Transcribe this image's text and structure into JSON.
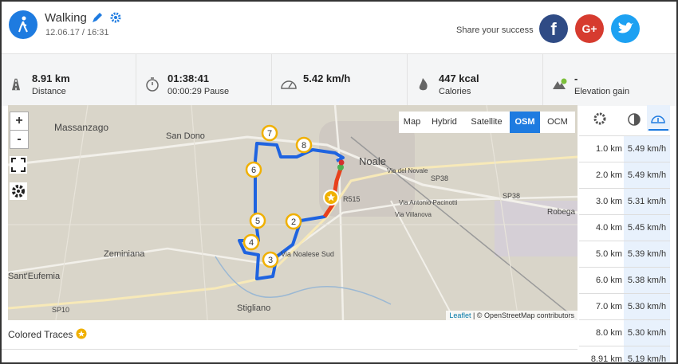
{
  "header": {
    "title": "Walking",
    "date": "12.06.17 / 16:31",
    "share": "Share your success",
    "social": [
      "f",
      "G+"
    ]
  },
  "stats": [
    {
      "value": "8.91 km",
      "label": "Distance"
    },
    {
      "value": "01:38:41",
      "label": "00:00:29 Pause"
    },
    {
      "value": "5.42 km/h"
    },
    {
      "value": "447 kcal",
      "label": "Calories"
    },
    {
      "value": "-",
      "label": "Elevation gain"
    }
  ],
  "map": {
    "layers": [
      "Map",
      "Hybrid",
      "Satellite",
      "OSM",
      "OCM"
    ],
    "active_layer": "OSM",
    "zoom": [
      "+",
      "-"
    ],
    "markers": [
      "2",
      "3",
      "4",
      "5",
      "6",
      "7",
      "8"
    ],
    "places": [
      "Massanzago",
      "San Dono",
      "Noale",
      "Zeminiana",
      "Sant'Eufemia",
      "Stigliano",
      "SP10",
      "SP38",
      "SP38",
      "R515",
      "Via Noalese Sud",
      "Via Antonio Pacinotti",
      "Robega",
      "Via del Novale",
      "Via Villanova"
    ],
    "attribution": {
      "link": "Leaflet",
      "text": "| © OpenStreetMap contributors"
    }
  },
  "splits": {
    "rows": [
      [
        "1.0 km",
        "5.49 km/h"
      ],
      [
        "2.0 km",
        "5.49 km/h"
      ],
      [
        "3.0 km",
        "5.31 km/h"
      ],
      [
        "4.0 km",
        "5.45 km/h"
      ],
      [
        "5.0 km",
        "5.39 km/h"
      ],
      [
        "6.0 km",
        "5.38 km/h"
      ],
      [
        "7.0 km",
        "5.30 km/h"
      ],
      [
        "8.0 km",
        "5.30 km/h"
      ],
      [
        "8.91 km",
        "5.19 km/h"
      ]
    ]
  },
  "colored_traces": "Colored Traces"
}
